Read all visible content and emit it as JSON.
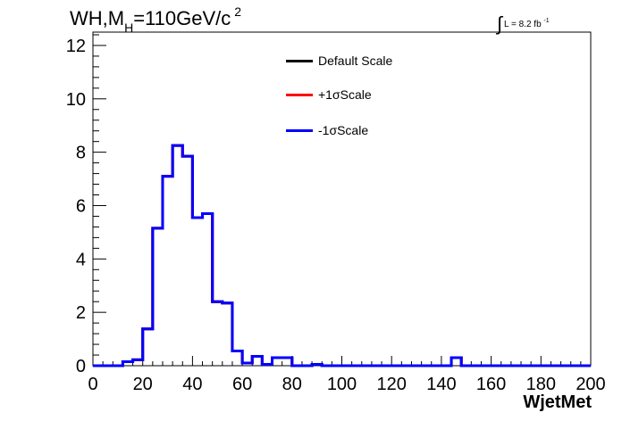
{
  "chart_data": {
    "type": "line",
    "title_main": "WH,M",
    "title_sub": "H",
    "title_rest": "=110GeV/c",
    "title_sup": "2",
    "lumi_label": "L = 8.2 fb",
    "lumi_sup": "-1",
    "xlabel": "WjetMet",
    "ylabel": "",
    "xlim": [
      0,
      200
    ],
    "ylim": [
      0,
      12.5
    ],
    "x_ticks": [
      "0",
      "20",
      "40",
      "60",
      "80",
      "100",
      "120",
      "140",
      "160",
      "180",
      "200"
    ],
    "y_ticks": [
      "0",
      "2",
      "4",
      "6",
      "8",
      "10",
      "12"
    ],
    "bin_width": 4,
    "bin_edges_start": 0,
    "series": [
      {
        "name": "Default Scale",
        "color": "#000000",
        "values": [
          0,
          0,
          0,
          0.15,
          0.22,
          1.38,
          5.15,
          7.1,
          8.25,
          7.85,
          5.55,
          5.7,
          2.4,
          2.35,
          0.55,
          0.1,
          0.35,
          0.05,
          0.3,
          0.3,
          0,
          0,
          0.05,
          0,
          0,
          0,
          0,
          0,
          0,
          0,
          0,
          0,
          0,
          0,
          0,
          0,
          0.3,
          0,
          0,
          0,
          0,
          0,
          0,
          0,
          0,
          0,
          0,
          0,
          0,
          0
        ]
      },
      {
        "name": "+1σScale",
        "color": "#ff0000",
        "values": [
          0,
          0,
          0,
          0.15,
          0.22,
          1.38,
          5.15,
          7.1,
          8.25,
          7.85,
          5.55,
          5.7,
          2.4,
          2.35,
          0.55,
          0.1,
          0.35,
          0.05,
          0.3,
          0.3,
          0,
          0,
          0.05,
          0,
          0,
          0,
          0,
          0,
          0,
          0,
          0,
          0,
          0,
          0,
          0,
          0,
          0.3,
          0,
          0,
          0,
          0,
          0,
          0,
          0,
          0,
          0,
          0,
          0,
          0,
          0
        ]
      },
      {
        "name": "-1σScale",
        "color": "#0000ff",
        "values": [
          0,
          0,
          0,
          0.15,
          0.22,
          1.38,
          5.15,
          7.1,
          8.25,
          7.85,
          5.55,
          5.7,
          2.4,
          2.35,
          0.55,
          0.1,
          0.35,
          0.05,
          0.3,
          0.3,
          0,
          0,
          0.05,
          0,
          0,
          0,
          0,
          0,
          0,
          0,
          0,
          0,
          0,
          0,
          0,
          0,
          0.3,
          0,
          0,
          0,
          0,
          0,
          0,
          0,
          0,
          0,
          0,
          0,
          0,
          0
        ]
      }
    ],
    "legend": {
      "placement": "top-center",
      "items": [
        {
          "label": "Default Scale",
          "color": "#000000"
        },
        {
          "label": "+1σScale",
          "color": "#ff0000"
        },
        {
          "label": "-1σScale",
          "color": "#0000ff"
        }
      ]
    }
  }
}
